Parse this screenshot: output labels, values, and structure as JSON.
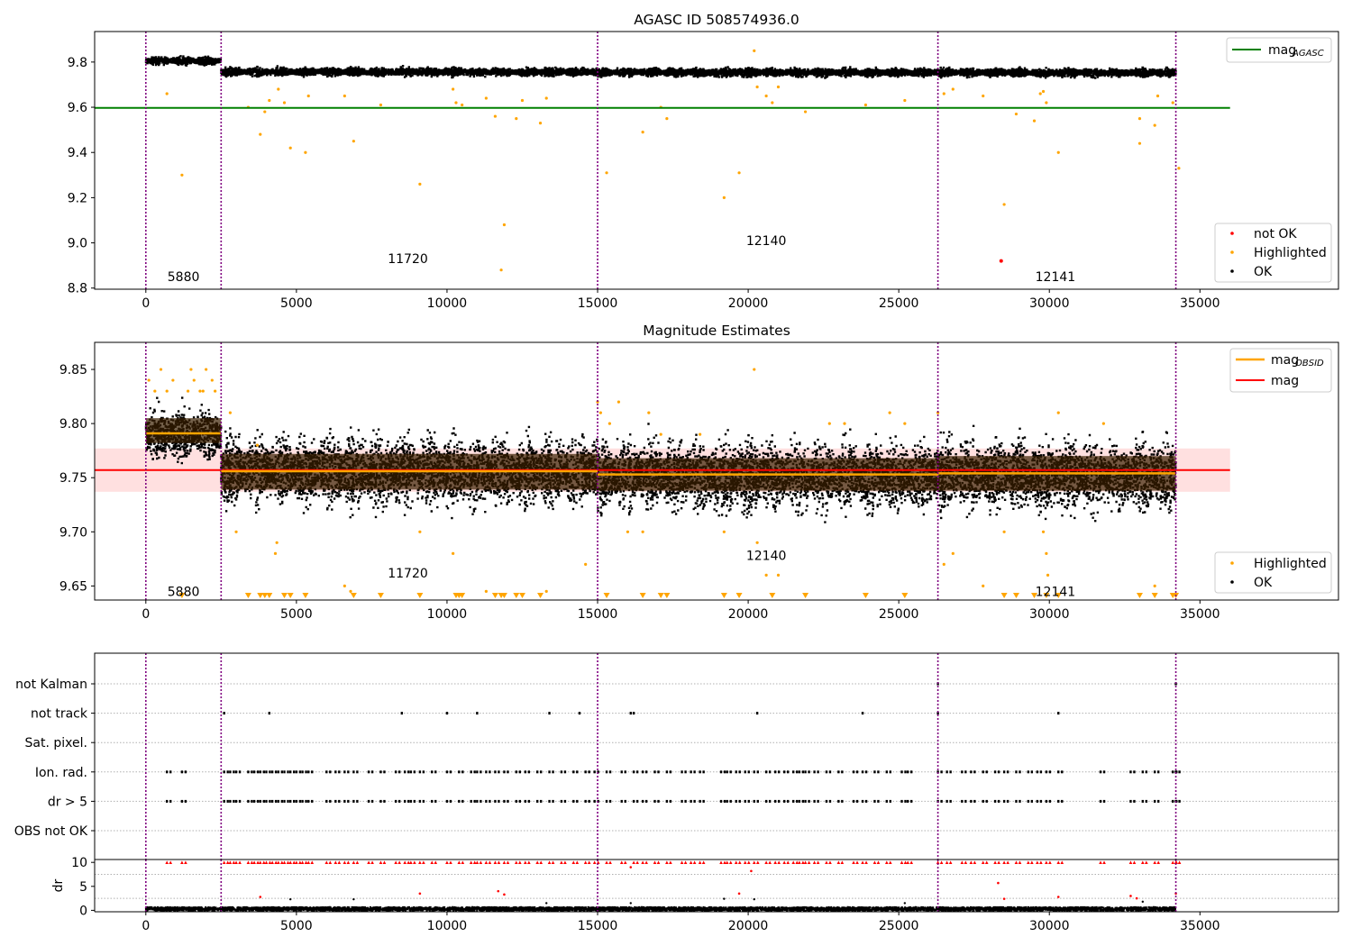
{
  "colors": {
    "ok": "#000000",
    "highlighted": "#ffa500",
    "not_ok": "#ff0000",
    "agasc_line": "#008000",
    "obsid_line": "#ffa500",
    "mean_line": "#ff0000",
    "band": "#ffdddd",
    "interval_line": "#800080",
    "grid": "#b0b0b0"
  },
  "chart_data": [
    {
      "type": "scatter",
      "title": "AGASC ID 508574936.0",
      "xlim": [
        -1700,
        39600
      ],
      "ylim": [
        8.795,
        9.935
      ],
      "xticks": [
        0,
        5000,
        10000,
        15000,
        20000,
        25000,
        30000,
        35000
      ],
      "yticks": [
        8.8,
        9.0,
        9.2,
        9.4,
        9.6,
        9.8
      ],
      "ytick_labels": [
        "8.8",
        "9.0",
        "9.2",
        "9.4",
        "9.6",
        "9.8"
      ],
      "obsid_boundaries": [
        0,
        2500,
        15000,
        26300,
        34200
      ],
      "obsid_labels": [
        {
          "text": "5880",
          "x": 1250,
          "y": 8.85
        },
        {
          "text": "11720",
          "x": 8700,
          "y": 8.93
        },
        {
          "text": "12140",
          "x": 20600,
          "y": 9.01
        },
        {
          "text": "12141",
          "x": 30200,
          "y": 8.85
        }
      ],
      "reference_lines": [
        {
          "name": "mag_AGASC",
          "value": 9.597,
          "x_range": [
            -1700,
            36000
          ]
        }
      ],
      "ok_band": [
        {
          "x_range": [
            0,
            2500
          ],
          "center": 9.805,
          "spread": 0.025
        },
        {
          "x_range": [
            2500,
            15000
          ],
          "center": 9.756,
          "spread": 0.028
        },
        {
          "x_range": [
            15000,
            26300
          ],
          "center": 9.754,
          "spread": 0.028
        },
        {
          "x_range": [
            26300,
            34200
          ],
          "center": 9.753,
          "spread": 0.028
        }
      ],
      "highlighted_points": [
        [
          700,
          9.66
        ],
        [
          1200,
          9.3
        ],
        [
          3400,
          9.6
        ],
        [
          3800,
          9.48
        ],
        [
          3950,
          9.58
        ],
        [
          4100,
          9.63
        ],
        [
          4400,
          9.68
        ],
        [
          4600,
          9.62
        ],
        [
          4800,
          9.42
        ],
        [
          5300,
          9.4
        ],
        [
          5400,
          9.65
        ],
        [
          6600,
          9.65
        ],
        [
          6900,
          9.45
        ],
        [
          7800,
          9.61
        ],
        [
          9100,
          9.26
        ],
        [
          10200,
          9.68
        ],
        [
          10300,
          9.62
        ],
        [
          10500,
          9.61
        ],
        [
          11300,
          9.64
        ],
        [
          11600,
          9.56
        ],
        [
          11800,
          8.88
        ],
        [
          11900,
          9.08
        ],
        [
          12300,
          9.55
        ],
        [
          12500,
          9.63
        ],
        [
          13100,
          9.53
        ],
        [
          13300,
          9.64
        ],
        [
          15300,
          9.31
        ],
        [
          16500,
          9.49
        ],
        [
          17100,
          9.6
        ],
        [
          17300,
          9.55
        ],
        [
          19200,
          9.2
        ],
        [
          19700,
          9.31
        ],
        [
          20200,
          9.85
        ],
        [
          20300,
          9.69
        ],
        [
          20600,
          9.65
        ],
        [
          20800,
          9.62
        ],
        [
          21000,
          9.69
        ],
        [
          21900,
          9.58
        ],
        [
          23900,
          9.61
        ],
        [
          25200,
          9.63
        ],
        [
          26500,
          9.66
        ],
        [
          26800,
          9.68
        ],
        [
          27800,
          9.65
        ],
        [
          28500,
          9.17
        ],
        [
          28900,
          9.57
        ],
        [
          29500,
          9.54
        ],
        [
          29700,
          9.66
        ],
        [
          29800,
          9.67
        ],
        [
          29900,
          9.62
        ],
        [
          30300,
          9.4
        ],
        [
          33000,
          9.55
        ],
        [
          33000,
          9.44
        ],
        [
          33500,
          9.52
        ],
        [
          33600,
          9.65
        ],
        [
          34100,
          9.62
        ],
        [
          34300,
          9.33
        ]
      ],
      "not_ok_points": [
        [
          28400,
          8.92
        ]
      ],
      "legend_lines": [
        "mag",
        "AGASC"
      ],
      "legend_points": [
        "not OK",
        "Highlighted",
        "OK"
      ]
    },
    {
      "type": "scatter",
      "title": "Magnitude Estimates",
      "xlim": [
        -1700,
        39600
      ],
      "ylim": [
        9.637,
        9.875
      ],
      "xticks": [
        0,
        5000,
        10000,
        15000,
        20000,
        25000,
        30000,
        35000
      ],
      "yticks": [
        9.65,
        9.7,
        9.75,
        9.8,
        9.85
      ],
      "ytick_labels": [
        "9.65",
        "9.70",
        "9.75",
        "9.80",
        "9.85"
      ],
      "obsid_boundaries": [
        0,
        2500,
        15000,
        26300,
        34200
      ],
      "obsid_labels": [
        {
          "text": "5880",
          "x": 1250,
          "y": 9.645
        },
        {
          "text": "11720",
          "x": 8700,
          "y": 9.662
        },
        {
          "text": "12140",
          "x": 20600,
          "y": 9.678
        },
        {
          "text": "12141",
          "x": 30200,
          "y": 9.645
        }
      ],
      "obsid_means": [
        {
          "x_range": [
            0,
            2500
          ],
          "value": 9.791,
          "band": [
            9.782,
            9.805
          ]
        },
        {
          "x_range": [
            2500,
            15000
          ],
          "value": 9.756,
          "band": [
            9.739,
            9.772
          ]
        },
        {
          "x_range": [
            15000,
            26300
          ],
          "value": 9.753,
          "band": [
            9.738,
            9.768
          ]
        },
        {
          "x_range": [
            26300,
            34200
          ],
          "value": 9.754,
          "band": [
            9.738,
            9.77
          ]
        }
      ],
      "overall_mean": {
        "value": 9.757,
        "band": [
          9.737,
          9.777
        ],
        "x_range": [
          -1700,
          36000
        ]
      },
      "ok_band": [
        {
          "x_range": [
            0,
            2500
          ],
          "center": 9.79,
          "spread": 0.035
        },
        {
          "x_range": [
            2500,
            15000
          ],
          "center": 9.756,
          "spread": 0.05
        },
        {
          "x_range": [
            15000,
            26300
          ],
          "center": 9.752,
          "spread": 0.05
        },
        {
          "x_range": [
            26300,
            34200
          ],
          "center": 9.752,
          "spread": 0.05
        }
      ],
      "highlighted_points": [
        [
          100,
          9.84
        ],
        [
          300,
          9.83
        ],
        [
          500,
          9.85
        ],
        [
          700,
          9.83
        ],
        [
          900,
          9.84
        ],
        [
          1400,
          9.83
        ],
        [
          1500,
          9.85
        ],
        [
          1600,
          9.84
        ],
        [
          1800,
          9.83
        ],
        [
          1900,
          9.83
        ],
        [
          2000,
          9.85
        ],
        [
          2200,
          9.84
        ],
        [
          2300,
          9.83
        ],
        [
          2800,
          9.81
        ],
        [
          3000,
          9.7
        ],
        [
          3700,
          9.78
        ],
        [
          4300,
          9.68
        ],
        [
          4350,
          9.69
        ],
        [
          6600,
          9.65
        ],
        [
          6800,
          9.645
        ],
        [
          9100,
          9.7
        ],
        [
          10200,
          9.68
        ],
        [
          11300,
          9.645
        ],
        [
          13300,
          9.645
        ],
        [
          14600,
          9.67
        ],
        [
          15000,
          9.82
        ],
        [
          15100,
          9.81
        ],
        [
          15400,
          9.8
        ],
        [
          15700,
          9.82
        ],
        [
          16000,
          9.7
        ],
        [
          16500,
          9.7
        ],
        [
          16700,
          9.81
        ],
        [
          17100,
          9.79
        ],
        [
          18400,
          9.79
        ],
        [
          19200,
          9.7
        ],
        [
          20200,
          9.85
        ],
        [
          20300,
          9.69
        ],
        [
          20600,
          9.66
        ],
        [
          21000,
          9.66
        ],
        [
          22700,
          9.8
        ],
        [
          23200,
          9.8
        ],
        [
          24700,
          9.81
        ],
        [
          25200,
          9.8
        ],
        [
          26300,
          9.81
        ],
        [
          26500,
          9.67
        ],
        [
          26800,
          9.68
        ],
        [
          27800,
          9.65
        ],
        [
          28500,
          9.7
        ],
        [
          29800,
          9.7
        ],
        [
          29900,
          9.68
        ],
        [
          29950,
          9.66
        ],
        [
          30300,
          9.81
        ],
        [
          31800,
          9.8
        ],
        [
          33500,
          9.65
        ]
      ],
      "below_axis_markers": [
        1200,
        3400,
        3800,
        3950,
        4100,
        4600,
        4800,
        5300,
        6900,
        7800,
        9100,
        10300,
        10400,
        10500,
        11600,
        11800,
        11900,
        12300,
        12500,
        13100,
        15300,
        16500,
        17100,
        17300,
        19200,
        19700,
        20800,
        21900,
        23900,
        25200,
        28500,
        28900,
        29500,
        29900,
        30300,
        33000,
        33500,
        34100,
        34200
      ],
      "legend_lines": [
        "mag",
        "OBSID",
        "mag"
      ],
      "legend_points": [
        "Highlighted",
        "OK"
      ]
    },
    {
      "type": "scatter",
      "title": "",
      "xlim": [
        -1700,
        39600
      ],
      "xticks": [
        0,
        5000,
        10000,
        15000,
        20000,
        25000,
        30000,
        35000
      ],
      "obsid_boundaries": [
        0,
        2500,
        15000,
        26300,
        34200
      ],
      "flag_rows": [
        "not Kalman",
        "not track",
        "Sat. pixel.",
        "Ion. rad.",
        "dr > 5",
        "OBS not OK"
      ],
      "flag_points": {
        "not Kalman": [
          26300,
          34200
        ],
        "not track": [
          2600,
          4100,
          8500,
          10000,
          11000,
          13400,
          14400,
          16100,
          16200,
          20300,
          23800,
          26300,
          30300
        ],
        "Sat. pixel.": [],
        "Ion. rad.": [
          700,
          1200,
          2600,
          2800,
          3000,
          3400,
          3600,
          3800,
          4000,
          4200,
          4400,
          4600,
          4800,
          5000,
          5200,
          5400,
          6000,
          6300,
          6600,
          6900,
          7400,
          7800,
          8300,
          8600,
          8800,
          9100,
          9500,
          10000,
          10400,
          10800,
          11000,
          11300,
          11600,
          11900,
          12300,
          12600,
          13000,
          13400,
          13800,
          14200,
          14600,
          14900,
          15300,
          15800,
          16200,
          16500,
          16900,
          17300,
          17800,
          18100,
          18400,
          19100,
          19300,
          19600,
          19900,
          20200,
          20600,
          20900,
          21200,
          21500,
          21700,
          21900,
          22200,
          22600,
          23000,
          23500,
          23800,
          24200,
          24600,
          25100,
          25300,
          26300,
          26600,
          27100,
          27400,
          27800,
          28200,
          28500,
          28900,
          29300,
          29600,
          29900,
          30300,
          31700,
          32700,
          33100,
          33500,
          34100,
          34200
        ],
        "dr > 5": [
          700,
          1200,
          2600,
          2800,
          3000,
          3400,
          3600,
          3800,
          4000,
          4200,
          4400,
          4600,
          4800,
          5000,
          5200,
          5400,
          6000,
          6300,
          6600,
          6900,
          7400,
          7800,
          8300,
          8600,
          8800,
          9100,
          9500,
          10000,
          10400,
          10800,
          11000,
          11300,
          11600,
          11900,
          12300,
          12600,
          13000,
          13400,
          13800,
          14200,
          14600,
          14900,
          15300,
          15800,
          16200,
          16500,
          16900,
          17300,
          17800,
          18100,
          18400,
          19100,
          19300,
          19600,
          19900,
          20200,
          20600,
          20900,
          21200,
          21500,
          21700,
          21900,
          22200,
          22600,
          23000,
          23500,
          23800,
          24200,
          24600,
          25100,
          25300,
          26300,
          26600,
          27100,
          27400,
          27800,
          28200,
          28500,
          28900,
          29300,
          29600,
          29900,
          30300,
          31700,
          32700,
          33100,
          33500,
          34100,
          34200
        ],
        "OBS not OK": []
      }
    },
    {
      "type": "scatter",
      "title": "",
      "ylabel": "dr",
      "xlim": [
        -1700,
        39600
      ],
      "ylim": [
        -0.3,
        10.6
      ],
      "xticks": [
        0,
        5000,
        10000,
        15000,
        20000,
        25000,
        30000,
        35000
      ],
      "yticks": [
        0,
        5,
        10
      ],
      "ytick_labels": [
        "0",
        "5",
        "10"
      ],
      "obsid_boundaries": [
        0,
        2500,
        15000,
        26300,
        34200
      ],
      "baseline_band": {
        "x_range": [
          0,
          34200
        ],
        "center": 0.3,
        "spread": 0.35
      },
      "red_at_10": [
        700,
        1200,
        2600,
        2800,
        3000,
        3400,
        3600,
        3800,
        4000,
        4200,
        4400,
        4600,
        4800,
        5000,
        5200,
        5400,
        6000,
        6300,
        6600,
        6900,
        7400,
        7800,
        8300,
        8600,
        8800,
        9100,
        9500,
        10000,
        10400,
        10800,
        11000,
        11300,
        11600,
        11900,
        12300,
        12600,
        13000,
        13400,
        13800,
        14200,
        14600,
        14900,
        15300,
        15800,
        16200,
        16500,
        16900,
        17300,
        17800,
        18100,
        18400,
        19100,
        19300,
        19600,
        19900,
        20200,
        20600,
        20900,
        21200,
        21500,
        21700,
        21900,
        22200,
        22600,
        23000,
        23500,
        23800,
        24200,
        24600,
        25100,
        25300,
        26300,
        26600,
        27100,
        27400,
        27800,
        28200,
        28500,
        28900,
        29300,
        29600,
        29900,
        30300,
        31700,
        32700,
        33100,
        33500,
        34100,
        34200
      ],
      "red_other": [
        [
          3800,
          2.8
        ],
        [
          9100,
          3.5
        ],
        [
          11700,
          4.0
        ],
        [
          11900,
          3.3
        ],
        [
          16100,
          9.0
        ],
        [
          19700,
          3.5
        ],
        [
          20100,
          8.2
        ],
        [
          28300,
          5.7
        ],
        [
          28500,
          2.4
        ],
        [
          30300,
          2.8
        ],
        [
          32700,
          3.0
        ],
        [
          32900,
          2.5
        ],
        [
          34200,
          3.5
        ]
      ],
      "black_other": [
        [
          4800,
          2.3
        ],
        [
          6900,
          2.3
        ],
        [
          13300,
          1.5
        ],
        [
          16100,
          1.5
        ],
        [
          19200,
          2.4
        ],
        [
          20200,
          2.3
        ],
        [
          25200,
          1.5
        ],
        [
          33100,
          1.8
        ]
      ]
    }
  ]
}
